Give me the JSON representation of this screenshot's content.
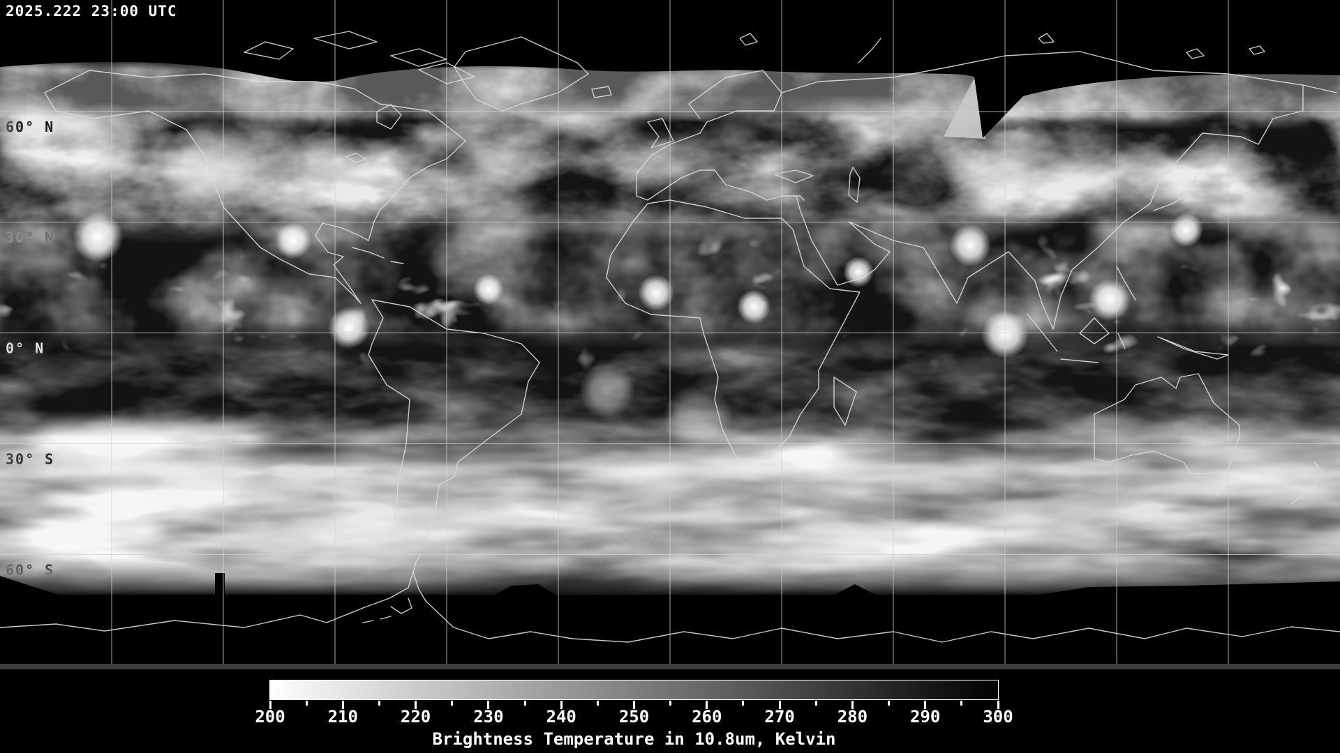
{
  "header": {
    "timestamp": "2025.222 23:00 UTC"
  },
  "map": {
    "latitude_labels": [
      {
        "label": "60° N"
      },
      {
        "label": "30° N"
      },
      {
        "label": "0° N"
      },
      {
        "label": "30° S"
      },
      {
        "label": "60° S"
      }
    ],
    "grid": {
      "latitudes_deg": [
        60,
        30,
        0,
        -30,
        -60
      ],
      "longitude_spacing_deg": 30
    }
  },
  "colorbar": {
    "title": "Brightness Temperature in 10.8um, Kelvin",
    "min": 200,
    "max": 300,
    "major_tick_step": 10,
    "minor_tick_step": 5,
    "tick_labels": [
      "200",
      "210",
      "220",
      "230",
      "240",
      "250",
      "260",
      "270",
      "280",
      "290",
      "300"
    ],
    "gradient_start": "#ffffff",
    "gradient_end": "#000000"
  }
}
